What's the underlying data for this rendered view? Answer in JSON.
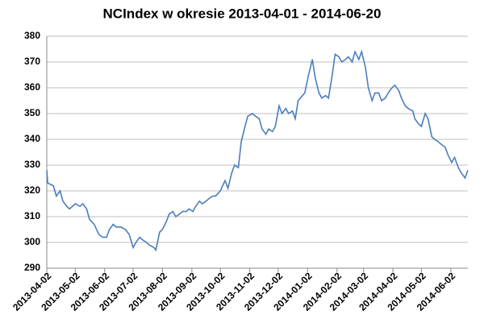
{
  "chart_data": {
    "type": "line",
    "title": "NCIndex w okresie 2013-04-01 - 2014-06-20",
    "x": [
      "2013-04-02",
      "2013-04-03",
      "2013-04-09",
      "2013-04-12",
      "2013-04-16",
      "2013-04-19",
      "2013-04-23",
      "2013-04-26",
      "2013-05-02",
      "2013-05-07",
      "2013-05-10",
      "2013-05-14",
      "2013-05-17",
      "2013-05-22",
      "2013-05-27",
      "2013-05-31",
      "2013-06-04",
      "2013-06-07",
      "2013-06-11",
      "2013-06-14",
      "2013-06-19",
      "2013-06-24",
      "2013-06-28",
      "2013-07-02",
      "2013-07-05",
      "2013-07-09",
      "2013-07-12",
      "2013-07-16",
      "2013-07-19",
      "2013-07-24",
      "2013-07-26",
      "2013-07-30",
      "2013-08-02",
      "2013-08-06",
      "2013-08-09",
      "2013-08-13",
      "2013-08-16",
      "2013-08-20",
      "2013-08-23",
      "2013-08-27",
      "2013-08-30",
      "2013-09-03",
      "2013-09-06",
      "2013-09-10",
      "2013-09-13",
      "2013-09-17",
      "2013-09-20",
      "2013-09-24",
      "2013-09-27",
      "2013-10-02",
      "2013-10-07",
      "2013-10-10",
      "2013-10-14",
      "2013-10-17",
      "2013-10-21",
      "2013-10-24",
      "2013-10-28",
      "2013-10-31",
      "2013-11-05",
      "2013-11-08",
      "2013-11-12",
      "2013-11-15",
      "2013-11-19",
      "2013-11-22",
      "2013-11-26",
      "2013-11-29",
      "2013-12-03",
      "2013-12-06",
      "2013-12-10",
      "2013-12-13",
      "2013-12-17",
      "2013-12-20",
      "2013-12-23",
      "2013-12-30",
      "2014-01-03",
      "2014-01-07",
      "2014-01-10",
      "2014-01-14",
      "2014-01-17",
      "2014-01-21",
      "2014-01-24",
      "2014-01-28",
      "2014-01-31",
      "2014-02-04",
      "2014-02-07",
      "2014-02-11",
      "2014-02-14",
      "2014-02-18",
      "2014-02-21",
      "2014-02-25",
      "2014-02-28",
      "2014-03-04",
      "2014-03-07",
      "2014-03-11",
      "2014-03-14",
      "2014-03-18",
      "2014-03-21",
      "2014-03-25",
      "2014-03-28",
      "2014-04-01",
      "2014-04-04",
      "2014-04-08",
      "2014-04-11",
      "2014-04-15",
      "2014-04-18",
      "2014-04-23",
      "2014-04-25",
      "2014-04-29",
      "2014-05-02",
      "2014-05-06",
      "2014-05-09",
      "2014-05-13",
      "2014-05-16",
      "2014-05-20",
      "2014-05-23",
      "2014-05-27",
      "2014-05-30",
      "2014-06-03",
      "2014-06-06",
      "2014-06-10",
      "2014-06-13",
      "2014-06-17",
      "2014-06-20"
    ],
    "series": [
      {
        "name": "NCIndex",
        "color": "#4a7ebb",
        "values": [
          328,
          323,
          322,
          318,
          320,
          316,
          314,
          313,
          315,
          314,
          315,
          313,
          309,
          307,
          303,
          302,
          302,
          305,
          307,
          306,
          306,
          305,
          303,
          298,
          300,
          302,
          301,
          300,
          299,
          298,
          297,
          304,
          305,
          308,
          311,
          312,
          310,
          311,
          312,
          312,
          313,
          312,
          314,
          316,
          315,
          316,
          317,
          318,
          318,
          320,
          324,
          321,
          327,
          330,
          329,
          339,
          345,
          349,
          350,
          349,
          348,
          344,
          342,
          344,
          343,
          345,
          353,
          350,
          352,
          350,
          351,
          348,
          355,
          358,
          365,
          371,
          364,
          358,
          356,
          357,
          356,
          365,
          373,
          372,
          370,
          371,
          372,
          370,
          374,
          371,
          374,
          368,
          360,
          355,
          358,
          358,
          355,
          356,
          358,
          360,
          361,
          359,
          356,
          353,
          352,
          351,
          348,
          346,
          345,
          350,
          348,
          341,
          340,
          339,
          338,
          337,
          334,
          331,
          333,
          329,
          327,
          325,
          328
        ]
      }
    ],
    "xlim": [
      "2013-04-02",
      "2014-06-20"
    ],
    "xticks": [
      "2013-04-02",
      "2013-05-02",
      "2013-06-02",
      "2013-07-02",
      "2013-08-02",
      "2013-09-02",
      "2013-10-02",
      "2013-11-02",
      "2013-12-02",
      "2014-01-02",
      "2014-02-02",
      "2014-03-02",
      "2014-04-02",
      "2014-05-02",
      "2014-06-02"
    ],
    "ylim": [
      290,
      380
    ],
    "yticks": [
      290,
      300,
      310,
      320,
      330,
      340,
      350,
      360,
      370,
      380
    ],
    "grid": true
  }
}
